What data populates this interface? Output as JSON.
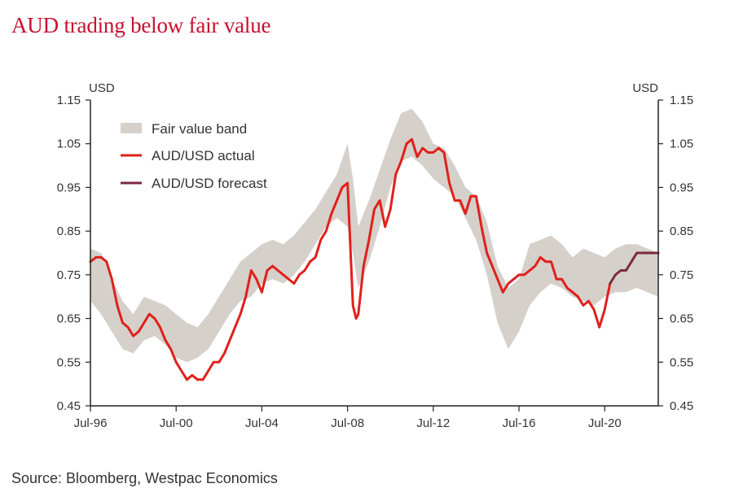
{
  "chart_data": {
    "type": "line",
    "title": "AUD trading below fair value",
    "source": "Source: Bloomberg, Westpac Economics",
    "y_unit_left": "USD",
    "y_unit_right": "USD",
    "ylim": [
      0.45,
      1.15
    ],
    "y_ticks": [
      "1.15",
      "1.05",
      "0.95",
      "0.85",
      "0.75",
      "0.65",
      "0.55",
      "0.45"
    ],
    "xlim": [
      1996.5,
      2023.0
    ],
    "x_ticks": [
      "Jul-96",
      "Jul-00",
      "Jul-04",
      "Jul-08",
      "Jul-12",
      "Jul-16",
      "Jul-20"
    ],
    "grid": false,
    "legend_position": "top-left",
    "legend": [
      "Fair value band",
      "AUD/USD actual",
      "AUD/USD forecast"
    ],
    "colors": {
      "band": "#d6d0cb",
      "actual": "#e0201b",
      "forecast": "#7b2a3e",
      "title": "#c8102e"
    },
    "series": [
      {
        "name": "Fair value band",
        "kind": "band",
        "x": [
          1996.5,
          1997.0,
          1997.5,
          1998.0,
          1998.5,
          1999.0,
          1999.5,
          2000.0,
          2000.5,
          2001.0,
          2001.5,
          2002.0,
          2002.5,
          2003.0,
          2003.5,
          2004.0,
          2004.5,
          2005.0,
          2005.5,
          2006.0,
          2006.5,
          2007.0,
          2007.5,
          2008.0,
          2008.5,
          2008.75,
          2009.0,
          2009.5,
          2010.0,
          2010.5,
          2011.0,
          2011.5,
          2012.0,
          2012.5,
          2013.0,
          2013.5,
          2014.0,
          2014.5,
          2015.0,
          2015.5,
          2016.0,
          2016.5,
          2017.0,
          2017.5,
          2018.0,
          2018.5,
          2019.0,
          2019.5,
          2020.0,
          2020.5,
          2021.0,
          2021.5,
          2022.0,
          2022.5,
          2023.0
        ],
        "low": [
          0.69,
          0.66,
          0.62,
          0.58,
          0.57,
          0.6,
          0.61,
          0.59,
          0.56,
          0.55,
          0.56,
          0.58,
          0.62,
          0.66,
          0.69,
          0.7,
          0.73,
          0.74,
          0.73,
          0.75,
          0.78,
          0.82,
          0.86,
          0.88,
          0.86,
          0.8,
          0.72,
          0.78,
          0.86,
          0.95,
          1.01,
          1.02,
          1.0,
          0.97,
          0.95,
          0.93,
          0.88,
          0.83,
          0.75,
          0.64,
          0.58,
          0.62,
          0.68,
          0.71,
          0.73,
          0.72,
          0.7,
          0.69,
          0.68,
          0.7,
          0.71,
          0.71,
          0.72,
          0.71,
          0.7
        ],
        "high": [
          0.81,
          0.8,
          0.74,
          0.69,
          0.66,
          0.7,
          0.69,
          0.68,
          0.66,
          0.64,
          0.63,
          0.66,
          0.7,
          0.74,
          0.78,
          0.8,
          0.82,
          0.83,
          0.82,
          0.84,
          0.87,
          0.9,
          0.94,
          0.98,
          1.05,
          0.97,
          0.86,
          0.92,
          0.99,
          1.06,
          1.12,
          1.13,
          1.1,
          1.05,
          1.04,
          1.0,
          0.95,
          0.93,
          0.87,
          0.77,
          0.72,
          0.74,
          0.82,
          0.83,
          0.84,
          0.82,
          0.79,
          0.81,
          0.8,
          0.79,
          0.81,
          0.82,
          0.82,
          0.81,
          0.8
        ]
      },
      {
        "name": "AUD/USD actual",
        "kind": "line",
        "x": [
          1996.5,
          1996.75,
          1997.0,
          1997.25,
          1997.5,
          1997.75,
          1998.0,
          1998.25,
          1998.5,
          1998.75,
          1999.0,
          1999.25,
          1999.5,
          1999.75,
          2000.0,
          2000.25,
          2000.5,
          2000.75,
          2001.0,
          2001.25,
          2001.5,
          2001.75,
          2002.0,
          2002.25,
          2002.5,
          2002.75,
          2003.0,
          2003.25,
          2003.5,
          2003.75,
          2004.0,
          2004.25,
          2004.5,
          2004.75,
          2005.0,
          2005.25,
          2005.5,
          2005.75,
          2006.0,
          2006.25,
          2006.5,
          2006.75,
          2007.0,
          2007.25,
          2007.5,
          2007.75,
          2008.0,
          2008.25,
          2008.5,
          2008.75,
          2008.9,
          2009.0,
          2009.25,
          2009.5,
          2009.75,
          2010.0,
          2010.25,
          2010.5,
          2010.75,
          2011.0,
          2011.25,
          2011.5,
          2011.75,
          2012.0,
          2012.25,
          2012.5,
          2012.75,
          2013.0,
          2013.25,
          2013.5,
          2013.75,
          2014.0,
          2014.25,
          2014.5,
          2014.75,
          2015.0,
          2015.25,
          2015.5,
          2015.75,
          2016.0,
          2016.25,
          2016.5,
          2016.75,
          2017.0,
          2017.25,
          2017.5,
          2017.75,
          2018.0,
          2018.25,
          2018.5,
          2018.75,
          2019.0,
          2019.25,
          2019.5,
          2019.75,
          2020.0,
          2020.25,
          2020.5,
          2020.75
        ],
        "y": [
          0.78,
          0.79,
          0.79,
          0.78,
          0.74,
          0.68,
          0.64,
          0.63,
          0.61,
          0.62,
          0.64,
          0.66,
          0.65,
          0.63,
          0.6,
          0.58,
          0.55,
          0.53,
          0.51,
          0.52,
          0.51,
          0.51,
          0.53,
          0.55,
          0.55,
          0.57,
          0.6,
          0.63,
          0.66,
          0.7,
          0.76,
          0.74,
          0.71,
          0.76,
          0.77,
          0.76,
          0.75,
          0.74,
          0.73,
          0.75,
          0.76,
          0.78,
          0.79,
          0.83,
          0.85,
          0.89,
          0.92,
          0.95,
          0.96,
          0.68,
          0.65,
          0.66,
          0.77,
          0.83,
          0.9,
          0.92,
          0.86,
          0.9,
          0.98,
          1.01,
          1.05,
          1.06,
          1.02,
          1.04,
          1.03,
          1.03,
          1.04,
          1.03,
          0.96,
          0.92,
          0.92,
          0.89,
          0.93,
          0.93,
          0.86,
          0.8,
          0.77,
          0.74,
          0.71,
          0.73,
          0.74,
          0.75,
          0.75,
          0.76,
          0.77,
          0.79,
          0.78,
          0.78,
          0.74,
          0.74,
          0.72,
          0.71,
          0.7,
          0.68,
          0.69,
          0.67,
          0.63,
          0.67,
          0.73
        ]
      },
      {
        "name": "AUD/USD forecast",
        "kind": "line",
        "x": [
          2020.75,
          2021.0,
          2021.25,
          2021.5,
          2021.75,
          2022.0,
          2022.25,
          2022.5,
          2022.75,
          2023.0
        ],
        "y": [
          0.73,
          0.75,
          0.76,
          0.76,
          0.78,
          0.8,
          0.8,
          0.8,
          0.8,
          0.8
        ]
      }
    ]
  }
}
